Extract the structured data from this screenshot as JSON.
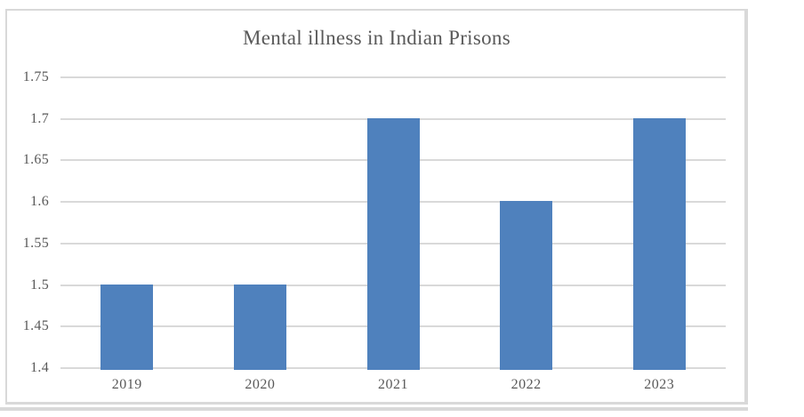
{
  "chart_data": {
    "type": "bar",
    "title": "Mental illness in Indian Prisons",
    "categories": [
      "2019",
      "2020",
      "2021",
      "2022",
      "2023"
    ],
    "values": [
      1.5,
      1.5,
      1.7,
      1.6,
      1.7
    ],
    "xlabel": "",
    "ylabel": "",
    "ylim": [
      1.4,
      1.75
    ],
    "yticks": [
      {
        "label": "1.75",
        "value": 1.75
      },
      {
        "label": "1.7",
        "value": 1.7
      },
      {
        "label": "1.65",
        "value": 1.65
      },
      {
        "label": "1.6",
        "value": 1.6
      },
      {
        "label": "1.55",
        "value": 1.55
      },
      {
        "label": "1.5",
        "value": 1.5
      },
      {
        "label": "1.45",
        "value": 1.45
      },
      {
        "label": "1.4",
        "value": 1.4
      }
    ],
    "grid": true,
    "legend": "none",
    "colors": {
      "bar": "#4f81bd",
      "grid": "#d9d9d9",
      "frame": "#d9d9d9",
      "title_text": "#595959",
      "tick_text": "#595959",
      "background": "#ffffff"
    }
  }
}
